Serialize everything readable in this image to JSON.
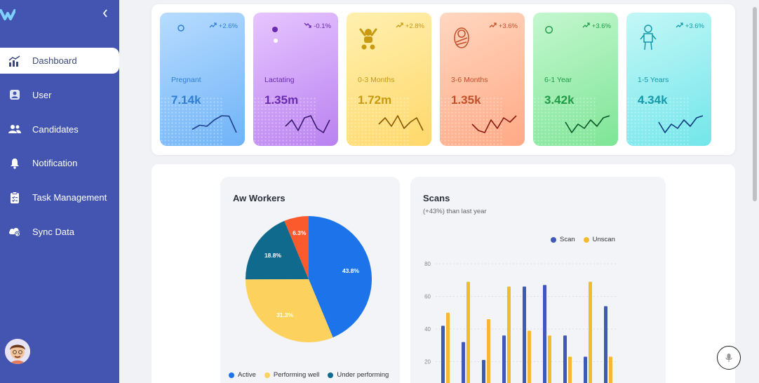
{
  "sidebar": {
    "logo_icon": "brand-logo-icon",
    "collapse_icon": "chevron-left-icon",
    "items": [
      {
        "label": "Dashboard",
        "icon": "chart-icon",
        "active": true
      },
      {
        "label": "User",
        "icon": "user-icon",
        "active": false
      },
      {
        "label": "Candidates",
        "icon": "users-icon",
        "active": false
      },
      {
        "label": "Notification",
        "icon": "bell-icon",
        "active": false
      },
      {
        "label": "Task Management",
        "icon": "clipboard-icon",
        "active": false
      },
      {
        "label": "Sync Data",
        "icon": "cloud-sync-icon",
        "active": false
      }
    ]
  },
  "stats": [
    {
      "label": "Pregnant",
      "value": "7.14k",
      "trend": "+2.6%",
      "direction": "up",
      "icon": "pregnant-icon",
      "bg1": "#b7dcff",
      "bg2": "#6fb3f7",
      "fg": "#2d7fd4",
      "line": "#1f3f8f",
      "spark": [
        0.75,
        0.55,
        0.6,
        0.3,
        0.1,
        0.12,
        0.9
      ]
    },
    {
      "label": "Lactating",
      "value": "1.35m",
      "trend": "-0.1%",
      "direction": "down",
      "icon": "mother-baby-icon",
      "bg1": "#e7c5ff",
      "bg2": "#b982f0",
      "fg": "#6a2ab0",
      "line": "#3a1870",
      "spark": [
        0.6,
        0.3,
        0.8,
        0.2,
        0.1,
        0.7,
        0.9,
        0.3
      ]
    },
    {
      "label": "0-3 Months",
      "value": "1.72m",
      "trend": "+2.8%",
      "direction": "up",
      "icon": "infant-icon",
      "bg1": "#fff0b0",
      "bg2": "#ffd86a",
      "fg": "#c79a12",
      "line": "#8a5a00",
      "spark": [
        0.5,
        0.2,
        0.6,
        0.1,
        0.7,
        0.4,
        0.2,
        0.8
      ]
    },
    {
      "label": "3-6 Months",
      "value": "1.35k",
      "trend": "+3.6%",
      "direction": "up",
      "icon": "swaddled-baby-icon",
      "bg1": "#ffd7c0",
      "bg2": "#ffa985",
      "fg": "#c4502a",
      "line": "#8a1a10",
      "spark": [
        0.5,
        0.8,
        0.9,
        0.3,
        0.7,
        0.2,
        0.4,
        0.1
      ]
    },
    {
      "label": "6-1 Year",
      "value": "3.42k",
      "trend": "+3.6%",
      "direction": "up",
      "icon": "crawling-baby-icon",
      "bg1": "#c4f7cf",
      "bg2": "#7ee596",
      "fg": "#1f9a47",
      "line": "#0c5a2a",
      "spark": [
        0.4,
        0.9,
        0.5,
        0.7,
        0.3,
        0.6,
        0.2,
        0.1
      ]
    },
    {
      "label": "1-5 Years",
      "value": "4.34k",
      "trend": "+3.6%",
      "direction": "up",
      "icon": "toddler-icon",
      "bg1": "#c4f7f7",
      "bg2": "#72e6ea",
      "fg": "#1598a8",
      "line": "#0d3d80",
      "spark": [
        0.4,
        0.9,
        0.5,
        0.7,
        0.3,
        0.6,
        0.2,
        0.1
      ]
    }
  ],
  "aw_workers": {
    "title": "Aw Workers",
    "chart_data": {
      "type": "pie",
      "title": "Aw Workers",
      "slices": [
        {
          "label": "Active",
          "value": 43.8,
          "text": "43.8%",
          "color": "#1c73ea"
        },
        {
          "label": "Performing well",
          "value": 31.3,
          "text": "31.3%",
          "color": "#fdd15d"
        },
        {
          "label": "Under performing",
          "value": 18.8,
          "text": "18.8%",
          "color": "#0f6a8d"
        },
        {
          "label": "",
          "value": 6.3,
          "text": "6.3%",
          "color": "#fa5a2c"
        }
      ]
    },
    "legend": [
      {
        "label": "Active",
        "color": "#1c73ea"
      },
      {
        "label": "Performing well",
        "color": "#fdd15d"
      },
      {
        "label": "Under performing",
        "color": "#0f6a8d"
      }
    ]
  },
  "scans": {
    "title": "Scans",
    "subtitle": "(+43%) than last year",
    "legend": [
      {
        "label": "Scan",
        "color": "#3f59b8"
      },
      {
        "label": "Unscan",
        "color": "#f4b932"
      }
    ],
    "chart_data": {
      "type": "bar",
      "title": "Scans",
      "yticks": [
        "80",
        "60",
        "40",
        "20"
      ],
      "ylim": [
        0,
        80
      ],
      "series": [
        {
          "name": "Scan",
          "values": [
            42,
            32,
            21,
            36,
            66,
            67,
            36,
            23,
            54
          ],
          "color": "#3f59b8"
        },
        {
          "name": "Unscan",
          "values": [
            50,
            69,
            46,
            66,
            39,
            36,
            23,
            69,
            23
          ],
          "color": "#f4b932"
        }
      ]
    }
  }
}
